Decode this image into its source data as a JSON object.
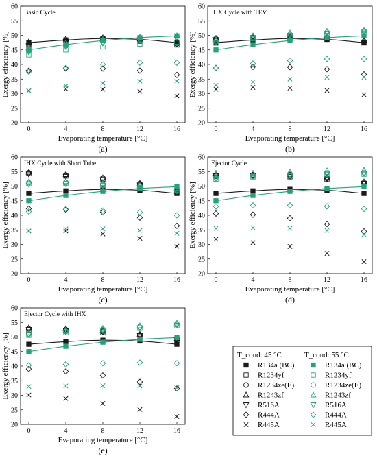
{
  "colors": {
    "t45": "#1a1a1a",
    "t55": "#27a17b"
  },
  "legend": {
    "col1_header": "T_cond: 45 °C",
    "col2_header": "T_cond: 55 °C",
    "entries": [
      {
        "label": "R134a (BC)",
        "marker": "filled-square",
        "line": true
      },
      {
        "label": "R1234yf",
        "marker": "square"
      },
      {
        "label": "R1234ze(E)",
        "marker": "circle"
      },
      {
        "label": "R1243zf",
        "marker": "triangle-up"
      },
      {
        "label": "R516A",
        "marker": "triangle-down"
      },
      {
        "label": "R444A",
        "marker": "diamond"
      },
      {
        "label": "R445A",
        "marker": "x"
      }
    ]
  },
  "chart_data": [
    {
      "type": "scatter",
      "letter": "(a)",
      "title": "Basic Cycle",
      "xlabel": "Evaporating temperature [°C]",
      "ylabel": "Exergy efficiency [%]",
      "x": [
        0,
        4,
        8,
        12,
        16
      ],
      "xticks": [
        0,
        4,
        8,
        12,
        16
      ],
      "ylim": [
        20,
        60
      ],
      "yticks": [
        20,
        25,
        30,
        35,
        40,
        45,
        50,
        55,
        60
      ],
      "series": [
        {
          "name": "R134a (BC)",
          "tcond": 45,
          "marker": "filled-square",
          "line": true,
          "values": [
            47.5,
            48.4,
            48.9,
            48.6,
            47.5
          ]
        },
        {
          "name": "R1234yf",
          "tcond": 45,
          "marker": "square",
          "values": [
            46.3,
            47.6,
            48.3,
            48.0,
            46.7
          ]
        },
        {
          "name": "R1234ze(E)",
          "tcond": 45,
          "marker": "circle",
          "values": [
            46.9,
            48.2,
            48.7,
            48.3,
            47.1
          ]
        },
        {
          "name": "R1243zf",
          "tcond": 45,
          "marker": "triangle-up",
          "values": [
            47.8,
            48.8,
            49.2,
            48.9,
            47.6
          ]
        },
        {
          "name": "R516A",
          "tcond": 45,
          "marker": "triangle-down",
          "values": [
            46.6,
            47.9,
            48.5,
            48.2,
            47.0
          ]
        },
        {
          "name": "R444A",
          "tcond": 45,
          "marker": "diamond",
          "values": [
            37.9,
            38.6,
            38.6,
            37.9,
            36.4
          ]
        },
        {
          "name": "R445A",
          "tcond": 45,
          "marker": "x",
          "values": [
            31.0,
            31.6,
            31.5,
            30.8,
            29.2
          ]
        },
        {
          "name": "R134a (BC)",
          "tcond": 55,
          "marker": "filled-square",
          "line": true,
          "values": [
            45.0,
            46.8,
            48.2,
            49.2,
            49.8
          ]
        },
        {
          "name": "R1234yf",
          "tcond": 55,
          "marker": "square",
          "values": [
            43.3,
            45.0,
            46.0,
            47.0,
            47.7
          ]
        },
        {
          "name": "R1234ze(E)",
          "tcond": 55,
          "marker": "circle",
          "values": [
            44.5,
            46.4,
            47.8,
            48.8,
            49.5
          ]
        },
        {
          "name": "R1243zf",
          "tcond": 55,
          "marker": "triangle-up",
          "values": [
            45.8,
            47.4,
            48.6,
            49.4,
            49.9
          ]
        },
        {
          "name": "R516A",
          "tcond": 55,
          "marker": "triangle-down",
          "values": [
            44.2,
            46.0,
            47.3,
            48.4,
            49.1
          ]
        },
        {
          "name": "R444A",
          "tcond": 55,
          "marker": "diamond",
          "values": [
            37.5,
            38.8,
            40.0,
            40.6,
            40.6
          ]
        },
        {
          "name": "R445A",
          "tcond": 55,
          "marker": "x",
          "values": [
            31.0,
            32.6,
            33.6,
            34.3,
            34.3
          ]
        }
      ]
    },
    {
      "type": "scatter",
      "letter": "(b)",
      "title": "IHX Cycle with TEV",
      "xlabel": "Evaporating temperature [°C]",
      "ylabel": "Exergy efficiency [%]",
      "x": [
        0,
        4,
        8,
        12,
        16
      ],
      "xticks": [
        0,
        4,
        8,
        12,
        16
      ],
      "ylim": [
        20,
        60
      ],
      "yticks": [
        20,
        25,
        30,
        35,
        40,
        45,
        50,
        55,
        60
      ],
      "series": [
        {
          "name": "R134a (BC)",
          "tcond": 45,
          "marker": "filled-square",
          "line": true,
          "values": [
            47.5,
            48.4,
            48.9,
            48.6,
            47.5
          ]
        },
        {
          "name": "R1234yf",
          "tcond": 45,
          "marker": "square",
          "values": [
            48.2,
            49.0,
            49.2,
            48.6,
            47.4
          ]
        },
        {
          "name": "R1234ze(E)",
          "tcond": 45,
          "marker": "circle",
          "values": [
            48.8,
            49.4,
            49.5,
            48.9,
            47.9
          ]
        },
        {
          "name": "R1243zf",
          "tcond": 45,
          "marker": "triangle-up",
          "values": [
            49.0,
            49.8,
            49.9,
            49.3,
            48.2
          ]
        },
        {
          "name": "R516A",
          "tcond": 45,
          "marker": "triangle-down",
          "values": [
            48.5,
            49.2,
            49.3,
            48.8,
            47.7
          ]
        },
        {
          "name": "R444A",
          "tcond": 45,
          "marker": "diamond",
          "values": [
            38.8,
            39.2,
            39.1,
            38.4,
            36.6
          ]
        },
        {
          "name": "R445A",
          "tcond": 45,
          "marker": "x",
          "values": [
            31.5,
            32.1,
            31.9,
            31.1,
            29.6
          ]
        },
        {
          "name": "R134a (BC)",
          "tcond": 55,
          "marker": "filled-square",
          "line": true,
          "values": [
            45.0,
            46.8,
            48.2,
            49.2,
            49.8
          ]
        },
        {
          "name": "R1234yf",
          "tcond": 55,
          "marker": "square",
          "values": [
            47.3,
            48.8,
            49.7,
            50.4,
            50.7
          ]
        },
        {
          "name": "R1234ze(E)",
          "tcond": 55,
          "marker": "circle",
          "values": [
            47.9,
            49.3,
            50.3,
            51.0,
            51.5
          ]
        },
        {
          "name": "R1243zf",
          "tcond": 55,
          "marker": "triangle-up",
          "values": [
            48.5,
            49.8,
            50.8,
            51.4,
            51.7
          ]
        },
        {
          "name": "R516A",
          "tcond": 55,
          "marker": "triangle-down",
          "values": [
            47.6,
            49.0,
            50.0,
            50.7,
            51.1
          ]
        },
        {
          "name": "R444A",
          "tcond": 55,
          "marker": "diamond",
          "values": [
            38.8,
            40.3,
            41.3,
            41.9,
            41.9
          ]
        },
        {
          "name": "R445A",
          "tcond": 55,
          "marker": "x",
          "values": [
            32.8,
            34.0,
            35.0,
            35.6,
            35.6
          ]
        }
      ]
    },
    {
      "type": "scatter",
      "letter": "(c)",
      "title": "IHX Cycle with Short Tube",
      "xlabel": "Evaporating temperature [°C]",
      "ylabel": "Exergy efficiency [%]",
      "x": [
        0,
        4,
        8,
        12,
        16
      ],
      "xticks": [
        0,
        4,
        8,
        12,
        16
      ],
      "ylim": [
        20,
        60
      ],
      "yticks": [
        20,
        25,
        30,
        35,
        40,
        45,
        50,
        55,
        60
      ],
      "series": [
        {
          "name": "R134a (BC)",
          "tcond": 45,
          "marker": "filled-square",
          "line": true,
          "values": [
            47.5,
            48.4,
            48.9,
            48.6,
            47.5
          ]
        },
        {
          "name": "R1234yf",
          "tcond": 45,
          "marker": "square",
          "values": [
            54.3,
            53.5,
            52.4,
            50.5,
            48.0
          ]
        },
        {
          "name": "R1234ze(E)",
          "tcond": 45,
          "marker": "circle",
          "values": [
            54.6,
            53.8,
            52.7,
            50.8,
            48.3
          ]
        },
        {
          "name": "R1243zf",
          "tcond": 45,
          "marker": "triangle-up",
          "values": [
            54.8,
            54.0,
            52.9,
            51.0,
            48.5
          ]
        },
        {
          "name": "R516A",
          "tcond": 45,
          "marker": "triangle-down",
          "values": [
            54.1,
            53.3,
            52.2,
            50.3,
            47.8
          ]
        },
        {
          "name": "R444A",
          "tcond": 45,
          "marker": "diamond",
          "values": [
            42.3,
            41.9,
            41.0,
            39.2,
            36.4
          ]
        },
        {
          "name": "R445A",
          "tcond": 45,
          "marker": "x",
          "values": [
            34.6,
            34.6,
            33.6,
            32.1,
            29.4
          ]
        },
        {
          "name": "R134a (BC)",
          "tcond": 55,
          "marker": "filled-square",
          "line": true,
          "values": [
            45.0,
            46.8,
            48.2,
            49.2,
            49.8
          ]
        },
        {
          "name": "R1234yf",
          "tcond": 55,
          "marker": "square",
          "values": [
            50.8,
            50.9,
            50.3,
            49.5,
            48.6
          ]
        },
        {
          "name": "R1234ze(E)",
          "tcond": 55,
          "marker": "circle",
          "values": [
            51.2,
            51.3,
            50.7,
            49.9,
            49.0
          ]
        },
        {
          "name": "R1243zf",
          "tcond": 55,
          "marker": "triangle-up",
          "values": [
            51.5,
            51.6,
            51.0,
            50.2,
            49.2
          ]
        },
        {
          "name": "R516A",
          "tcond": 55,
          "marker": "triangle-down",
          "values": [
            50.6,
            50.7,
            50.1,
            49.3,
            48.3
          ]
        },
        {
          "name": "R444A",
          "tcond": 55,
          "marker": "diamond",
          "values": [
            41.3,
            42.1,
            41.6,
            41.0,
            40.0
          ]
        },
        {
          "name": "R445A",
          "tcond": 55,
          "marker": "x",
          "values": [
            34.6,
            35.3,
            35.4,
            34.8,
            33.8
          ]
        }
      ]
    },
    {
      "type": "scatter",
      "letter": "(d)",
      "title": "Ejector Cycle",
      "xlabel": "Evaporating temperature [°C]",
      "ylabel": "Exergy efficiency [%]",
      "x": [
        0,
        4,
        8,
        12,
        16
      ],
      "xticks": [
        0,
        4,
        8,
        12,
        16
      ],
      "ylim": [
        20,
        60
      ],
      "yticks": [
        20,
        25,
        30,
        35,
        40,
        45,
        50,
        55,
        60
      ],
      "series": [
        {
          "name": "R134a (BC)",
          "tcond": 45,
          "marker": "filled-square",
          "line": true,
          "values": [
            47.5,
            48.4,
            48.9,
            48.6,
            47.5
          ]
        },
        {
          "name": "R1234yf",
          "tcond": 45,
          "marker": "square",
          "values": [
            53.4,
            53.5,
            53.2,
            52.3,
            50.8
          ]
        },
        {
          "name": "R1234ze(E)",
          "tcond": 45,
          "marker": "circle",
          "values": [
            53.8,
            53.9,
            53.6,
            52.7,
            51.2
          ]
        },
        {
          "name": "R1243zf",
          "tcond": 45,
          "marker": "triangle-up",
          "values": [
            54.4,
            54.4,
            54.0,
            53.1,
            51.5
          ]
        },
        {
          "name": "R516A",
          "tcond": 45,
          "marker": "triangle-down",
          "values": [
            53.6,
            53.7,
            53.4,
            52.5,
            51.0
          ]
        },
        {
          "name": "R444A",
          "tcond": 45,
          "marker": "diamond",
          "values": [
            40.6,
            40.2,
            39.0,
            37.0,
            34.5
          ]
        },
        {
          "name": "R445A",
          "tcond": 45,
          "marker": "x",
          "values": [
            31.8,
            30.6,
            29.3,
            26.9,
            24.1
          ]
        },
        {
          "name": "R134a (BC)",
          "tcond": 55,
          "marker": "filled-square",
          "line": true,
          "values": [
            45.0,
            46.8,
            48.2,
            49.2,
            49.8
          ]
        },
        {
          "name": "R1234yf",
          "tcond": 55,
          "marker": "square",
          "values": [
            52.4,
            53.0,
            53.5,
            53.9,
            54.1
          ]
        },
        {
          "name": "R1234ze(E)",
          "tcond": 55,
          "marker": "circle",
          "values": [
            53.0,
            53.6,
            54.1,
            54.5,
            54.7
          ]
        },
        {
          "name": "R1243zf",
          "tcond": 55,
          "marker": "triangle-up",
          "values": [
            53.7,
            54.4,
            54.9,
            55.3,
            55.5
          ]
        },
        {
          "name": "R516A",
          "tcond": 55,
          "marker": "triangle-down",
          "values": [
            52.7,
            53.3,
            53.8,
            54.2,
            54.4
          ]
        },
        {
          "name": "R444A",
          "tcond": 55,
          "marker": "diamond",
          "values": [
            43.0,
            43.4,
            43.4,
            43.1,
            42.2
          ]
        },
        {
          "name": "R445A",
          "tcond": 55,
          "marker": "x",
          "values": [
            35.5,
            35.7,
            35.5,
            34.8,
            33.4
          ]
        }
      ]
    },
    {
      "type": "scatter",
      "letter": "(e)",
      "title": "Ejector Cycle with IHX",
      "xlabel": "Evaporating temperature [°C]",
      "ylabel": "Exergy efficiency [%]",
      "x": [
        0,
        4,
        8,
        12,
        16
      ],
      "xticks": [
        0,
        4,
        8,
        12,
        16
      ],
      "ylim": [
        20,
        60
      ],
      "yticks": [
        20,
        25,
        30,
        35,
        40,
        45,
        50,
        55,
        60
      ],
      "series": [
        {
          "name": "R134a (BC)",
          "tcond": 45,
          "marker": "filled-square",
          "line": true,
          "values": [
            47.5,
            48.4,
            48.9,
            48.6,
            47.5
          ]
        },
        {
          "name": "R1234yf",
          "tcond": 45,
          "marker": "square",
          "values": [
            52.4,
            52.1,
            51.5,
            50.3,
            48.8
          ]
        },
        {
          "name": "R1234ze(E)",
          "tcond": 45,
          "marker": "circle",
          "values": [
            52.8,
            52.5,
            51.9,
            50.7,
            49.2
          ]
        },
        {
          "name": "R1243zf",
          "tcond": 45,
          "marker": "triangle-up",
          "values": [
            53.2,
            52.9,
            52.3,
            51.0,
            49.5
          ]
        },
        {
          "name": "R516A",
          "tcond": 45,
          "marker": "triangle-down",
          "values": [
            52.6,
            52.3,
            51.7,
            50.5,
            49.0
          ]
        },
        {
          "name": "R444A",
          "tcond": 45,
          "marker": "diamond",
          "values": [
            39.0,
            38.2,
            36.8,
            34.6,
            32.3
          ]
        },
        {
          "name": "R445A",
          "tcond": 45,
          "marker": "x",
          "values": [
            30.1,
            28.9,
            27.2,
            25.1,
            22.7
          ]
        },
        {
          "name": "R134a (BC)",
          "tcond": 55,
          "marker": "filled-square",
          "line": true,
          "values": [
            45.0,
            46.8,
            48.2,
            49.2,
            49.8
          ]
        },
        {
          "name": "R1234yf",
          "tcond": 55,
          "marker": "square",
          "values": [
            50.6,
            51.5,
            52.2,
            53.0,
            53.9
          ]
        },
        {
          "name": "R1234ze(E)",
          "tcond": 55,
          "marker": "circle",
          "values": [
            51.0,
            51.9,
            52.6,
            53.4,
            54.3
          ]
        },
        {
          "name": "R1243zf",
          "tcond": 55,
          "marker": "triangle-up",
          "values": [
            51.5,
            52.4,
            53.0,
            53.9,
            54.8
          ]
        },
        {
          "name": "R516A",
          "tcond": 55,
          "marker": "triangle-down",
          "values": [
            50.8,
            51.7,
            52.4,
            53.2,
            54.1
          ]
        },
        {
          "name": "R444A",
          "tcond": 55,
          "marker": "diamond",
          "values": [
            40.3,
            40.6,
            41.0,
            41.2,
            41.0
          ]
        },
        {
          "name": "R445A",
          "tcond": 55,
          "marker": "x",
          "values": [
            33.0,
            33.2,
            33.3,
            33.2,
            32.6
          ]
        }
      ]
    }
  ]
}
